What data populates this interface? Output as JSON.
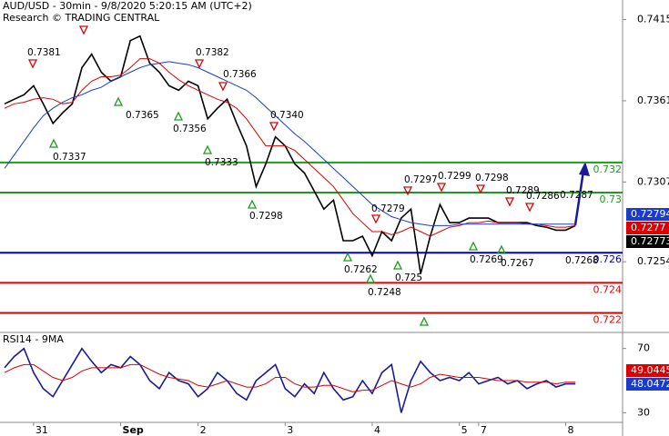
{
  "chart_data": [
    {
      "type": "line",
      "title": "AUD/USD - 30min - 9/8/2020 5:20:15 AM (UTC+2)",
      "subtitle": "Research © TRADING CENTRAL",
      "categories": [
        null,
        null,
        null,
        "31",
        null,
        null,
        null,
        null,
        null,
        null,
        null,
        null,
        "Sep",
        null,
        null,
        null,
        null,
        null,
        null,
        null,
        "2",
        null,
        null,
        null,
        null,
        null,
        null,
        null,
        null,
        "3",
        null,
        null,
        null,
        null,
        null,
        null,
        null,
        null,
        "4",
        null,
        null,
        null,
        null,
        null,
        null,
        null,
        null,
        "5",
        null,
        "7",
        null,
        null,
        null,
        null,
        null,
        null,
        null,
        null,
        "8",
        null
      ],
      "series": [
        {
          "color": "#000000",
          "values": [
            0.7359,
            0.7362,
            0.7365,
            0.7371,
            0.7359,
            0.7346,
            0.7353,
            0.7359,
            0.7383,
            0.7392,
            0.738,
            0.7374,
            0.7377,
            0.7401,
            0.7404,
            0.7386,
            0.738,
            0.7371,
            0.7368,
            0.7374,
            0.7371,
            0.7349,
            0.7356,
            0.7362,
            0.7346,
            0.7331,
            0.7304,
            0.7319,
            0.7337,
            0.7331,
            0.7319,
            0.7313,
            0.7301,
            0.7289,
            0.7295,
            0.7268,
            0.7268,
            0.7271,
            0.7258,
            0.7274,
            0.7268,
            0.7283,
            0.7289,
            0.7246,
            0.7271,
            0.7292,
            0.728,
            0.728,
            0.7283,
            0.7283,
            0.7283,
            0.728,
            0.728,
            0.728,
            0.728,
            0.7278,
            0.7277,
            0.7275,
            0.7275,
            0.7278
          ]
        },
        {
          "color": "#dd0000",
          "values": [
            0.7356,
            0.7359,
            0.736,
            0.7362,
            0.7363,
            0.7362,
            0.7359,
            0.736,
            0.7368,
            0.7374,
            0.7377,
            0.7377,
            0.7378,
            0.7383,
            0.7389,
            0.7389,
            0.7386,
            0.738,
            0.7375,
            0.7371,
            0.7368,
            0.7365,
            0.7362,
            0.736,
            0.7356,
            0.7349,
            0.734,
            0.7331,
            0.7331,
            0.7331,
            0.7328,
            0.7322,
            0.7316,
            0.731,
            0.7304,
            0.7295,
            0.7286,
            0.728,
            0.7274,
            0.7274,
            0.7272,
            0.7274,
            0.7277,
            0.7274,
            0.7271,
            0.7274,
            0.7277,
            0.7278,
            0.728,
            0.728,
            0.7281,
            0.728,
            0.728,
            0.728,
            0.7279,
            0.7279,
            0.7278,
            0.7277,
            0.7277,
            0.7278
          ]
        },
        {
          "color": "#1a3ccc",
          "values": [
            0.7316,
            0.7325,
            0.7334,
            0.7343,
            0.7351,
            0.7356,
            0.736,
            0.7363,
            0.7365,
            0.7368,
            0.737,
            0.7374,
            0.7377,
            0.738,
            0.7383,
            0.7385,
            0.7386,
            0.7387,
            0.7386,
            0.7385,
            0.7383,
            0.738,
            0.7377,
            0.7374,
            0.7371,
            0.7368,
            0.7363,
            0.7357,
            0.7351,
            0.7345,
            0.7339,
            0.7334,
            0.7328,
            0.7322,
            0.7316,
            0.731,
            0.7304,
            0.7298,
            0.7292,
            0.7288,
            0.7284,
            0.7282,
            0.728,
            0.7279,
            0.7278,
            0.7278,
            0.7278,
            0.7279,
            0.7279,
            0.7279,
            0.7279,
            0.7279,
            0.7279,
            0.7279,
            0.7279,
            0.7279,
            0.7279,
            0.7279,
            0.7279,
            0.7279
          ]
        }
      ],
      "ylim": [
        0.7207,
        0.7428
      ],
      "yticks": [
        0.7254,
        0.7307,
        0.7361,
        0.7415
      ],
      "levels": [
        {
          "value": 0.732,
          "color": "#1a9e1a"
        },
        {
          "value": 0.73,
          "color": "#1a9e1a"
        },
        {
          "value": 0.726,
          "color": "#0000cc"
        },
        {
          "value": 0.724,
          "color": "#dd0000"
        },
        {
          "value": 0.722,
          "color": "#dd0000"
        }
      ],
      "price_boxes": [
        {
          "value": 0.72794,
          "color": "#1a3ccc"
        },
        {
          "value": 0.7277,
          "color": "#dd0000"
        },
        {
          "value": 0.72773,
          "color": "#000000"
        }
      ],
      "annotations": [
        "0.7381",
        "0.7337",
        "0.7365",
        "0.7382",
        "0.7366",
        "0.7356",
        "0.7333",
        "0.7340",
        "0.7298",
        "0.7262",
        "0.7279",
        "0.7248",
        "0.7297",
        "0.725",
        "0.7299",
        "0.7298",
        "0.7269",
        "0.7289",
        "0.7286",
        "0.7267",
        "0.7287",
        "0.7268"
      ]
    },
    {
      "type": "line",
      "title": "RSI14 - 9MA",
      "series": [
        {
          "color": "#1a1a99",
          "values": [
            58,
            65,
            70,
            55,
            45,
            40,
            50,
            60,
            70,
            62,
            55,
            60,
            58,
            65,
            60,
            50,
            45,
            55,
            50,
            48,
            40,
            45,
            55,
            50,
            42,
            38,
            50,
            55,
            60,
            45,
            40,
            48,
            42,
            55,
            45,
            38,
            40,
            50,
            42,
            55,
            60,
            30,
            50,
            62,
            55,
            50,
            52,
            50,
            55,
            48,
            50,
            52,
            48,
            50,
            45,
            48,
            50,
            46,
            48,
            48
          ]
        },
        {
          "color": "#dd0000",
          "values": [
            55,
            58,
            60,
            60,
            56,
            52,
            50,
            52,
            56,
            58,
            58,
            58,
            58,
            60,
            60,
            57,
            54,
            52,
            51,
            50,
            47,
            46,
            48,
            50,
            48,
            46,
            46,
            48,
            52,
            52,
            48,
            46,
            46,
            47,
            47,
            45,
            43,
            44,
            44,
            47,
            50,
            48,
            46,
            48,
            52,
            54,
            53,
            52,
            52,
            52,
            51,
            50,
            50,
            50,
            49,
            49,
            49,
            48,
            49,
            49
          ]
        }
      ],
      "ylim": [
        24,
        80
      ],
      "yticks": [
        30,
        70
      ],
      "value_boxes": [
        {
          "value": 49.0445,
          "color": "#dd0000"
        },
        {
          "value": 48.0472,
          "color": "#1a3ccc"
        }
      ]
    }
  ]
}
